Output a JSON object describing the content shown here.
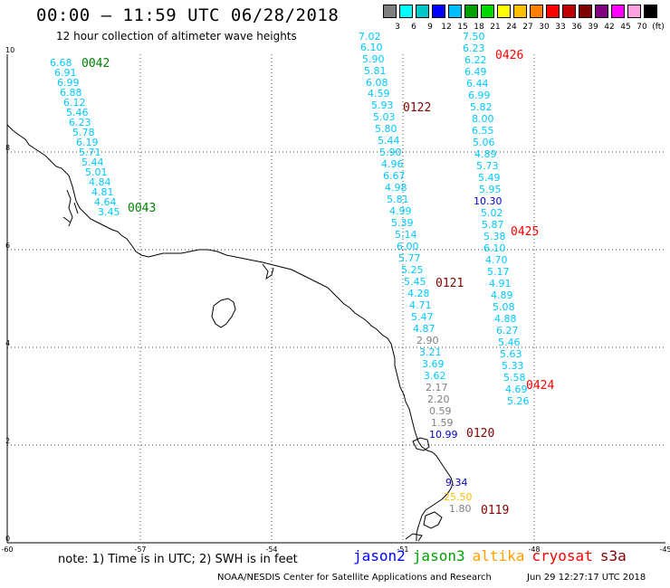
{
  "header": {
    "title": "00:00 – 11:59 UTC 06/28/2018",
    "subtitle": "12 hour collection of altimeter wave heights"
  },
  "colorbar": {
    "colors": [
      "#7f7f7f",
      "#00ffff",
      "#00c8c8",
      "#0000ff",
      "#00bfff",
      "#00a000",
      "#00d800",
      "#ffff00",
      "#ffc000",
      "#ff8000",
      "#ff0000",
      "#c00000",
      "#800000",
      "#800080",
      "#ff00ff",
      "#ffa0e0",
      "#000000"
    ],
    "labels": [
      "3",
      "6",
      "9",
      "12",
      "15",
      "18",
      "21",
      "24",
      "27",
      "30",
      "33",
      "36",
      "39",
      "42",
      "45",
      "70",
      "(ft)"
    ]
  },
  "axes": {
    "x_ticks": [
      "-60",
      "-57",
      "-54",
      "-51",
      "-48",
      "-45"
    ],
    "y_ticks": [
      "0",
      "2",
      "4",
      "6",
      "8",
      "10"
    ]
  },
  "tracks": [
    {
      "id": "0042-0043",
      "labels": [
        {
          "text": "0042",
          "color": "#008000"
        },
        {
          "text": "0043",
          "color": "#008000"
        }
      ],
      "values": [
        {
          "text": "6.68",
          "color": "#00c8ff"
        },
        {
          "text": "6.91",
          "color": "#00c8ff"
        },
        {
          "text": "6.99",
          "color": "#00c8ff"
        },
        {
          "text": "6.88",
          "color": "#00c8ff"
        },
        {
          "text": "6.12",
          "color": "#00c8ff"
        },
        {
          "text": "5.46",
          "color": "#00c8ff"
        },
        {
          "text": "6.23",
          "color": "#00c8ff"
        },
        {
          "text": "5.78",
          "color": "#00c8ff"
        },
        {
          "text": "6.19",
          "color": "#00c8ff"
        },
        {
          "text": "5.71",
          "color": "#00c8ff"
        },
        {
          "text": "5.44",
          "color": "#00c8ff"
        },
        {
          "text": "5.01",
          "color": "#00c8ff"
        },
        {
          "text": "4.84",
          "color": "#00c8ff"
        },
        {
          "text": "4.81",
          "color": "#00c8ff"
        },
        {
          "text": "4.64",
          "color": "#00c8ff"
        },
        {
          "text": "3.45",
          "color": "#00c8ff"
        }
      ]
    },
    {
      "id": "0122-0121-0120-0119",
      "labels": [
        {
          "text": "0122",
          "color": "#800000"
        },
        {
          "text": "0121",
          "color": "#800000"
        },
        {
          "text": "0120",
          "color": "#800000"
        },
        {
          "text": "0119",
          "color": "#800000"
        }
      ],
      "values": [
        {
          "text": "7.02",
          "color": "#00c8ff"
        },
        {
          "text": "6.10",
          "color": "#00c8ff"
        },
        {
          "text": "5.90",
          "color": "#00c8ff"
        },
        {
          "text": "5.81",
          "color": "#00c8ff"
        },
        {
          "text": "6.08",
          "color": "#00c8ff"
        },
        {
          "text": "4.59",
          "color": "#00c8ff"
        },
        {
          "text": "5.93",
          "color": "#00c8ff"
        },
        {
          "text": "5.03",
          "color": "#00c8ff"
        },
        {
          "text": "5.80",
          "color": "#00c8ff"
        },
        {
          "text": "5.44",
          "color": "#00c8ff"
        },
        {
          "text": "5.90",
          "color": "#00c8ff"
        },
        {
          "text": "4.96",
          "color": "#00c8ff"
        },
        {
          "text": "6.67",
          "color": "#00c8ff"
        },
        {
          "text": "4.98",
          "color": "#00c8ff"
        },
        {
          "text": "5.81",
          "color": "#00c8ff"
        },
        {
          "text": "4.99",
          "color": "#00c8ff"
        },
        {
          "text": "5.39",
          "color": "#00c8ff"
        },
        {
          "text": "5.14",
          "color": "#00c8ff"
        },
        {
          "text": "6.00",
          "color": "#00c8ff"
        },
        {
          "text": "5.77",
          "color": "#00c8ff"
        },
        {
          "text": "5.25",
          "color": "#00c8ff"
        },
        {
          "text": "5.45",
          "color": "#00c8ff"
        },
        {
          "text": "4.28",
          "color": "#00c8ff"
        },
        {
          "text": "4.71",
          "color": "#00c8ff"
        },
        {
          "text": "5.47",
          "color": "#00c8ff"
        },
        {
          "text": "4.87",
          "color": "#00c8ff"
        },
        {
          "text": "2.90",
          "color": "#808080"
        },
        {
          "text": "3.21",
          "color": "#00c8ff"
        },
        {
          "text": "3.69",
          "color": "#00c8ff"
        },
        {
          "text": "3.62",
          "color": "#00c8ff"
        },
        {
          "text": "2.17",
          "color": "#808080"
        },
        {
          "text": "2.20",
          "color": "#808080"
        },
        {
          "text": "0.59",
          "color": "#808080"
        },
        {
          "text": "1.59",
          "color": "#808080"
        },
        {
          "text": "10.99",
          "color": "#0000c8"
        },
        {
          "text": "9.34",
          "color": "#0000c8"
        },
        {
          "text": "25.50",
          "color": "#ffc000"
        },
        {
          "text": "1.80",
          "color": "#808080"
        }
      ]
    },
    {
      "id": "0426-0425-0424",
      "labels": [
        {
          "text": "0426",
          "color": "#ff0000"
        },
        {
          "text": "0425",
          "color": "#ff0000"
        },
        {
          "text": "0424",
          "color": "#ff0000"
        }
      ],
      "values": [
        {
          "text": "7.50",
          "color": "#00c8ff"
        },
        {
          "text": "6.23",
          "color": "#00c8ff"
        },
        {
          "text": "6.22",
          "color": "#00c8ff"
        },
        {
          "text": "6.49",
          "color": "#00c8ff"
        },
        {
          "text": "6.44",
          "color": "#00c8ff"
        },
        {
          "text": "6.99",
          "color": "#00c8ff"
        },
        {
          "text": "5.82",
          "color": "#00c8ff"
        },
        {
          "text": "8.00",
          "color": "#00c8ff"
        },
        {
          "text": "6.55",
          "color": "#00c8ff"
        },
        {
          "text": "5.06",
          "color": "#00c8ff"
        },
        {
          "text": "4.89",
          "color": "#00c8ff"
        },
        {
          "text": "5.73",
          "color": "#00c8ff"
        },
        {
          "text": "5.49",
          "color": "#00c8ff"
        },
        {
          "text": "5.95",
          "color": "#00c8ff"
        },
        {
          "text": "10.30",
          "color": "#0000c8"
        },
        {
          "text": "5.02",
          "color": "#00c8ff"
        },
        {
          "text": "5.87",
          "color": "#00c8ff"
        },
        {
          "text": "5.38",
          "color": "#00c8ff"
        },
        {
          "text": "6.10",
          "color": "#00c8ff"
        },
        {
          "text": "4.70",
          "color": "#00c8ff"
        },
        {
          "text": "5.17",
          "color": "#00c8ff"
        },
        {
          "text": "4.91",
          "color": "#00c8ff"
        },
        {
          "text": "4.89",
          "color": "#00c8ff"
        },
        {
          "text": "5.08",
          "color": "#00c8ff"
        },
        {
          "text": "4.88",
          "color": "#00c8ff"
        },
        {
          "text": "6.27",
          "color": "#00c8ff"
        },
        {
          "text": "5.46",
          "color": "#00c8ff"
        },
        {
          "text": "5.63",
          "color": "#00c8ff"
        },
        {
          "text": "5.33",
          "color": "#00c8ff"
        },
        {
          "text": "5.58",
          "color": "#00c8ff"
        },
        {
          "text": "4.69",
          "color": "#00c8ff"
        },
        {
          "text": "5.26",
          "color": "#00c8ff"
        }
      ]
    }
  ],
  "footer": {
    "note": "note: 1) Time is in UTC; 2) SWH is in feet",
    "legend": [
      {
        "text": "jason2",
        "color": "#0000ff"
      },
      {
        "text": "jason3",
        "color": "#00a000"
      },
      {
        "text": "altika",
        "color": "#ffa000"
      },
      {
        "text": "cryosat",
        "color": "#ff0000"
      },
      {
        "text": "s3a",
        "color": "#800000"
      }
    ],
    "credit": "NOAA/NESDIS Center for Satellite Applications and Research",
    "timestamp": "Jun 29 12:27:17 UTC 2018"
  }
}
